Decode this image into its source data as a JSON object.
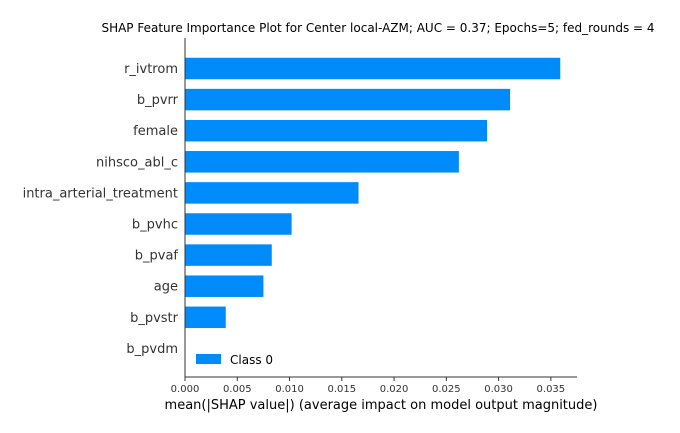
{
  "chart_data": {
    "type": "bar",
    "orientation": "horizontal",
    "title": "SHAP Feature Importance Plot for Center local-AZM; AUC = 0.37; Epochs=5; fed_rounds = 4",
    "xlabel": "mean(|SHAP value|) (average impact on model output magnitude)",
    "ylabel": "",
    "categories": [
      "r_ivtrom",
      "b_pvrr",
      "female",
      "nihsco_abl_c",
      "intra_arterial_treatment",
      "b_pvhc",
      "b_pvaf",
      "age",
      "b_pvstr",
      "b_pvdm"
    ],
    "series": [
      {
        "name": "Class 0",
        "color": "#008bfb",
        "values": [
          0.0359,
          0.0311,
          0.0289,
          0.0262,
          0.0166,
          0.0102,
          0.0083,
          0.0075,
          0.0039,
          0.0
        ]
      }
    ],
    "xlim": [
      0,
      0.0375
    ],
    "xticks": [
      "0.000",
      "0.005",
      "0.010",
      "0.015",
      "0.020",
      "0.025",
      "0.030",
      "0.035"
    ],
    "legend_position": "lower-left",
    "grid": false
  }
}
